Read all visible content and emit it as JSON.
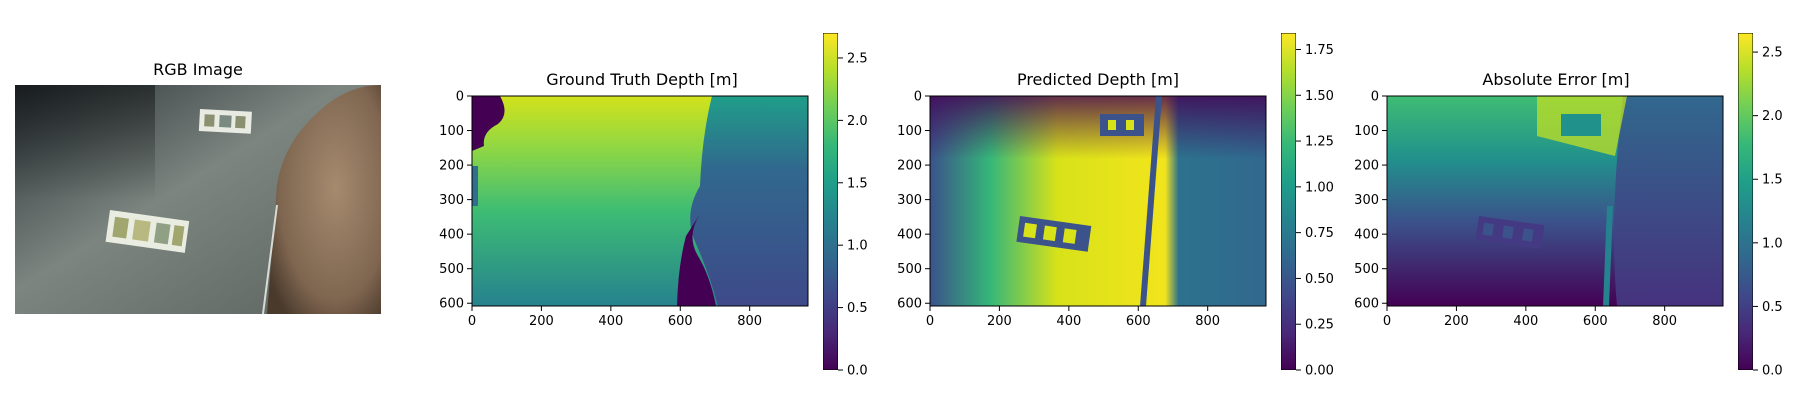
{
  "colors": {
    "viridis": [
      "#440154",
      "#482878",
      "#3e4989",
      "#31688e",
      "#26828e",
      "#1f9e89",
      "#35b779",
      "#6ece58",
      "#b5de2b",
      "#fde725"
    ]
  },
  "chart_data": [
    {
      "type": "image",
      "title": "RGB Image",
      "content": "underwater rgb photo"
    },
    {
      "type": "heatmap",
      "title": "Ground Truth Depth [m]",
      "x_ticks": [
        0,
        200,
        400,
        600,
        800
      ],
      "y_ticks": [
        0,
        100,
        200,
        300,
        400,
        500,
        600
      ],
      "xlim": [
        0,
        968
      ],
      "ylim": [
        608,
        0
      ],
      "colorbar": {
        "min": 0.0,
        "max": 2.7,
        "ticks": [
          "0.0",
          "0.5",
          "1.0",
          "1.5",
          "2.0",
          "2.5"
        ],
        "tick_values": [
          0.0,
          0.5,
          1.0,
          1.5,
          2.0,
          2.5
        ]
      }
    },
    {
      "type": "heatmap",
      "title": "Predicted Depth [m]",
      "x_ticks": [
        0,
        200,
        400,
        600,
        800
      ],
      "y_ticks": [
        0,
        100,
        200,
        300,
        400,
        500,
        600
      ],
      "xlim": [
        0,
        968
      ],
      "ylim": [
        608,
        0
      ],
      "colorbar": {
        "min": 0.0,
        "max": 1.84,
        "ticks": [
          "0.00",
          "0.25",
          "0.50",
          "0.75",
          "1.00",
          "1.25",
          "1.50",
          "1.75"
        ],
        "tick_values": [
          0.0,
          0.25,
          0.5,
          0.75,
          1.0,
          1.25,
          1.5,
          1.75
        ]
      }
    },
    {
      "type": "heatmap",
      "title": "Absolute Error [m]",
      "x_ticks": [
        0,
        200,
        400,
        600,
        800
      ],
      "y_ticks": [
        0,
        100,
        200,
        300,
        400,
        500,
        600
      ],
      "xlim": [
        0,
        968
      ],
      "ylim": [
        608,
        0
      ],
      "colorbar": {
        "min": 0.0,
        "max": 2.65,
        "ticks": [
          "0.0",
          "0.5",
          "1.0",
          "1.5",
          "2.0",
          "2.5"
        ],
        "tick_values": [
          0.0,
          0.5,
          1.0,
          1.5,
          2.0,
          2.5
        ]
      }
    }
  ]
}
